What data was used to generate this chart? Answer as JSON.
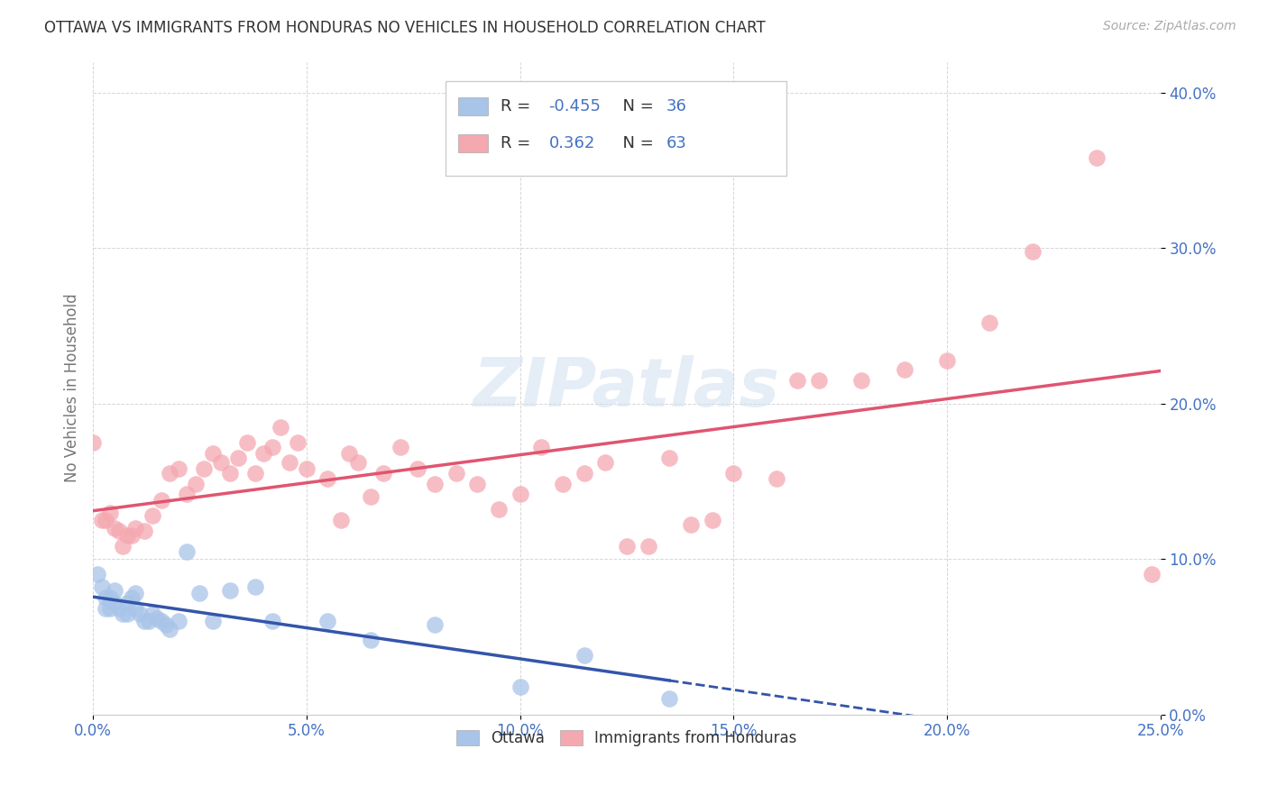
{
  "title": "OTTAWA VS IMMIGRANTS FROM HONDURAS NO VEHICLES IN HOUSEHOLD CORRELATION CHART",
  "source": "Source: ZipAtlas.com",
  "ylabel": "No Vehicles in Household",
  "xlim": [
    0.0,
    0.25
  ],
  "ylim": [
    0.0,
    0.42
  ],
  "legend_ottawa_R": "-0.455",
  "legend_ottawa_N": "36",
  "legend_honduras_R": "0.362",
  "legend_honduras_N": "63",
  "ottawa_color": "#a8c4e8",
  "honduras_color": "#f4a8b0",
  "ottawa_line_color": "#3355aa",
  "honduras_line_color": "#e05570",
  "watermark": "ZIPatlas",
  "ottawa_x": [
    0.001,
    0.002,
    0.003,
    0.003,
    0.004,
    0.004,
    0.005,
    0.005,
    0.006,
    0.007,
    0.008,
    0.008,
    0.009,
    0.01,
    0.01,
    0.011,
    0.012,
    0.013,
    0.014,
    0.015,
    0.016,
    0.017,
    0.018,
    0.02,
    0.022,
    0.025,
    0.028,
    0.032,
    0.038,
    0.042,
    0.055,
    0.065,
    0.08,
    0.1,
    0.115,
    0.135
  ],
  "ottawa_y": [
    0.09,
    0.082,
    0.075,
    0.068,
    0.075,
    0.068,
    0.08,
    0.072,
    0.068,
    0.065,
    0.065,
    0.072,
    0.075,
    0.078,
    0.068,
    0.065,
    0.06,
    0.06,
    0.065,
    0.062,
    0.06,
    0.058,
    0.055,
    0.06,
    0.105,
    0.078,
    0.06,
    0.08,
    0.082,
    0.06,
    0.06,
    0.048,
    0.058,
    0.018,
    0.038,
    0.01
  ],
  "honduras_x": [
    0.0,
    0.002,
    0.003,
    0.004,
    0.005,
    0.006,
    0.007,
    0.008,
    0.009,
    0.01,
    0.012,
    0.014,
    0.016,
    0.018,
    0.02,
    0.022,
    0.024,
    0.026,
    0.028,
    0.03,
    0.032,
    0.034,
    0.036,
    0.038,
    0.04,
    0.042,
    0.044,
    0.046,
    0.048,
    0.05,
    0.055,
    0.058,
    0.06,
    0.062,
    0.065,
    0.068,
    0.072,
    0.076,
    0.08,
    0.085,
    0.09,
    0.095,
    0.1,
    0.105,
    0.11,
    0.115,
    0.12,
    0.125,
    0.13,
    0.135,
    0.14,
    0.145,
    0.15,
    0.16,
    0.165,
    0.17,
    0.18,
    0.19,
    0.2,
    0.21,
    0.22,
    0.235,
    0.248
  ],
  "honduras_y": [
    0.175,
    0.125,
    0.125,
    0.13,
    0.12,
    0.118,
    0.108,
    0.115,
    0.115,
    0.12,
    0.118,
    0.128,
    0.138,
    0.155,
    0.158,
    0.142,
    0.148,
    0.158,
    0.168,
    0.162,
    0.155,
    0.165,
    0.175,
    0.155,
    0.168,
    0.172,
    0.185,
    0.162,
    0.175,
    0.158,
    0.152,
    0.125,
    0.168,
    0.162,
    0.14,
    0.155,
    0.172,
    0.158,
    0.148,
    0.155,
    0.148,
    0.132,
    0.142,
    0.172,
    0.148,
    0.155,
    0.162,
    0.108,
    0.108,
    0.165,
    0.122,
    0.125,
    0.155,
    0.152,
    0.215,
    0.215,
    0.215,
    0.222,
    0.228,
    0.252,
    0.298,
    0.358,
    0.09
  ]
}
